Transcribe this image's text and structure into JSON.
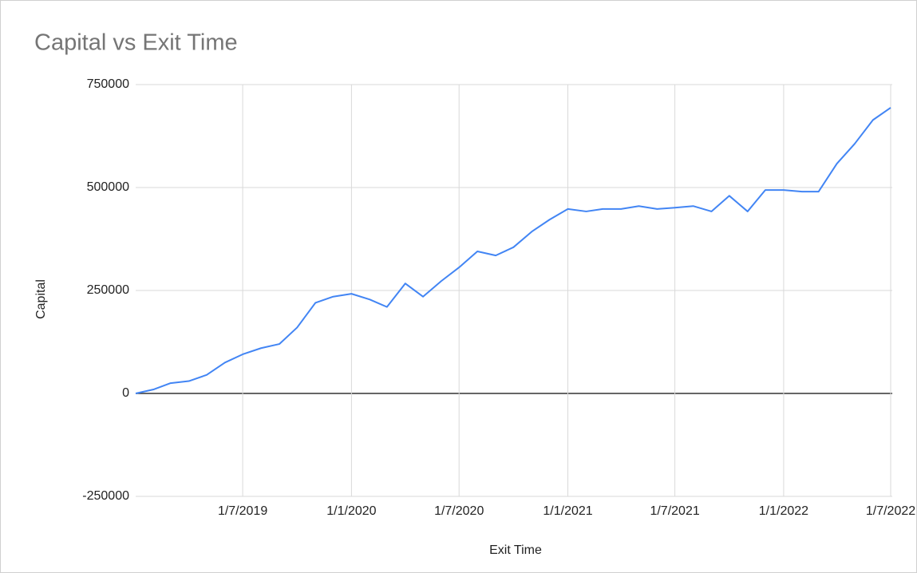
{
  "chart_data": {
    "type": "line",
    "title": "Capital vs Exit Time",
    "x_label": "Exit Time",
    "y_label": "Capital",
    "x": [
      "1/1/2019",
      "1/2/2019",
      "1/3/2019",
      "1/4/2019",
      "1/5/2019",
      "1/6/2019",
      "1/7/2019",
      "1/8/2019",
      "1/9/2019",
      "1/10/2019",
      "1/11/2019",
      "1/12/2019",
      "1/1/2020",
      "1/2/2020",
      "1/3/2020",
      "1/4/2020",
      "1/5/2020",
      "1/6/2020",
      "1/7/2020",
      "1/8/2020",
      "1/9/2020",
      "1/10/2020",
      "1/11/2020",
      "1/12/2020",
      "1/1/2021",
      "1/2/2021",
      "1/3/2021",
      "1/4/2021",
      "1/5/2021",
      "1/6/2021",
      "1/7/2021",
      "1/8/2021",
      "1/9/2021",
      "1/10/2021",
      "1/11/2021",
      "1/12/2021",
      "1/1/2022",
      "1/2/2022",
      "1/3/2022",
      "1/4/2022",
      "1/5/2022",
      "1/6/2022",
      "1/7/2022"
    ],
    "series": [
      {
        "name": "Capital",
        "color": "#4285f4",
        "values": [
          0,
          10000,
          25000,
          30000,
          45000,
          75000,
          95000,
          110000,
          120000,
          160000,
          220000,
          235000,
          242000,
          228000,
          210000,
          267000,
          235000,
          273000,
          306000,
          345000,
          335000,
          355000,
          393000,
          422000,
          448000,
          442000,
          448000,
          448000,
          455000,
          448000,
          451000,
          455000,
          442000,
          480000,
          442000,
          494000,
          494000,
          490000,
          490000,
          558000,
          606000,
          664000,
          694000
        ]
      }
    ],
    "xlim": [
      "1/1/2019",
      "1/7/2022"
    ],
    "xticks": [
      "1/7/2019",
      "1/1/2020",
      "1/7/2020",
      "1/1/2021",
      "1/7/2021",
      "1/1/2022",
      "1/7/2022"
    ],
    "ylim": [
      -250000,
      750000
    ],
    "yticks": [
      -250000,
      0,
      250000,
      500000,
      750000
    ],
    "grid": true
  }
}
